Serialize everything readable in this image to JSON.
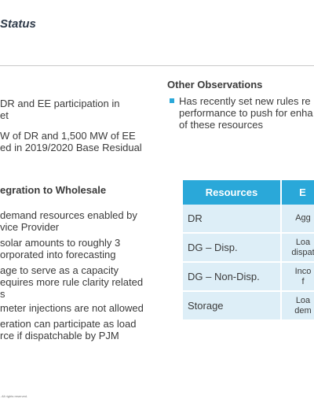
{
  "slide": {
    "title": "Status"
  },
  "left": {
    "intro_lines": [
      "DR and EE participation in",
      "et",
      "W of DR and 1,500 MW of EE",
      "ed in 2019/2020 Base Residual"
    ],
    "section_heading": "egration to Wholesale",
    "bullet_lines": [
      "demand resources enabled by",
      "vice Provider",
      " solar amounts to roughly 3",
      "orporated into forecasting",
      "age to serve as a capacity",
      "equires more rule clarity related",
      "s",
      "meter injections are not allowed",
      "eration can participate as load",
      "rce if dispatchable by PJM"
    ]
  },
  "right": {
    "heading": "Other Observations",
    "bullet_lines": [
      "Has recently set new rules re",
      "performance to push for enha",
      "of these resources"
    ]
  },
  "table": {
    "headers": [
      "Resources",
      "E"
    ],
    "rows": [
      {
        "resource": "DR",
        "detail": [
          "Agg"
        ]
      },
      {
        "resource": "DG – Disp.",
        "detail": [
          "Loa",
          "dispat"
        ]
      },
      {
        "resource": "DG – Non-Disp.",
        "detail": [
          "Inco",
          "f"
        ]
      },
      {
        "resource": "Storage",
        "detail": [
          "Loa",
          "dem"
        ]
      }
    ]
  },
  "footer": {
    "text": ". All rights reserved."
  },
  "colors": {
    "accent": "#2aa8d9",
    "table_cell": "#ddeef7",
    "title": "#2f3b4a"
  }
}
